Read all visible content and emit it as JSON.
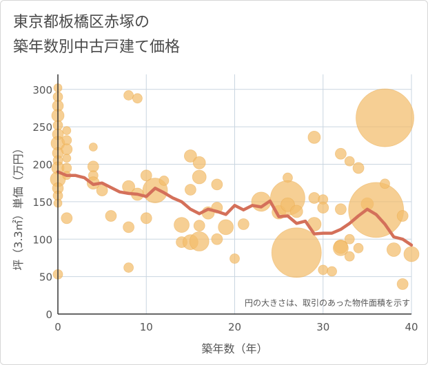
{
  "title_lines": [
    "東京都板橋区赤塚の",
    "築年数別中古戸建て価格"
  ],
  "chart_data": {
    "type": "scatter",
    "title": "東京都板橋区赤塚の築年数別中古戸建て価格",
    "xlabel": "築年数（年）",
    "ylabel": "坪（3.3㎡）単価（万円）",
    "xlim": [
      0,
      40
    ],
    "ylim": [
      0,
      320
    ],
    "xticks": [
      0,
      10,
      20,
      30,
      40
    ],
    "yticks": [
      0,
      50,
      100,
      150,
      200,
      250,
      300
    ],
    "grid": true,
    "annotation": "円の大きさは、取引のあった物件面積を示す",
    "colors": {
      "bubble": "#f2bd6b",
      "line": "#d4705a",
      "grid": "#c9d5e0",
      "axis": "#333333"
    },
    "series": [
      {
        "type": "bubble",
        "points": [
          {
            "x": 0,
            "y": 302,
            "s": 6
          },
          {
            "x": 0,
            "y": 290,
            "s": 7
          },
          {
            "x": 0,
            "y": 278,
            "s": 8
          },
          {
            "x": 0,
            "y": 265,
            "s": 9
          },
          {
            "x": 0,
            "y": 252,
            "s": 7
          },
          {
            "x": 0,
            "y": 240,
            "s": 8
          },
          {
            "x": 0,
            "y": 228,
            "s": 10
          },
          {
            "x": 0,
            "y": 215,
            "s": 8
          },
          {
            "x": 0,
            "y": 205,
            "s": 7
          },
          {
            "x": 0,
            "y": 195,
            "s": 9
          },
          {
            "x": 0,
            "y": 180,
            "s": 11
          },
          {
            "x": 0,
            "y": 168,
            "s": 8
          },
          {
            "x": 0,
            "y": 158,
            "s": 7
          },
          {
            "x": 0,
            "y": 148,
            "s": 6
          },
          {
            "x": 0,
            "y": 53,
            "s": 7
          },
          {
            "x": 1,
            "y": 245,
            "s": 6
          },
          {
            "x": 1,
            "y": 232,
            "s": 7
          },
          {
            "x": 1,
            "y": 220,
            "s": 8
          },
          {
            "x": 1,
            "y": 208,
            "s": 6
          },
          {
            "x": 1,
            "y": 195,
            "s": 7
          },
          {
            "x": 1,
            "y": 185,
            "s": 6
          },
          {
            "x": 1,
            "y": 128,
            "s": 8
          },
          {
            "x": 4,
            "y": 223,
            "s": 6
          },
          {
            "x": 4,
            "y": 197,
            "s": 8
          },
          {
            "x": 4,
            "y": 185,
            "s": 7
          },
          {
            "x": 4,
            "y": 175,
            "s": 9
          },
          {
            "x": 5,
            "y": 165,
            "s": 8
          },
          {
            "x": 6,
            "y": 131,
            "s": 8
          },
          {
            "x": 8,
            "y": 292,
            "s": 7
          },
          {
            "x": 9,
            "y": 288,
            "s": 7
          },
          {
            "x": 8,
            "y": 170,
            "s": 9
          },
          {
            "x": 8,
            "y": 116,
            "s": 8
          },
          {
            "x": 8,
            "y": 62,
            "s": 7
          },
          {
            "x": 9,
            "y": 160,
            "s": 9
          },
          {
            "x": 10,
            "y": 185,
            "s": 8
          },
          {
            "x": 10,
            "y": 128,
            "s": 8
          },
          {
            "x": 11,
            "y": 165,
            "s": 18
          },
          {
            "x": 12,
            "y": 178,
            "s": 7
          },
          {
            "x": 14,
            "y": 119,
            "s": 11
          },
          {
            "x": 14,
            "y": 96,
            "s": 8
          },
          {
            "x": 15,
            "y": 211,
            "s": 9
          },
          {
            "x": 15,
            "y": 166,
            "s": 8
          },
          {
            "x": 15,
            "y": 96,
            "s": 11
          },
          {
            "x": 16,
            "y": 202,
            "s": 9
          },
          {
            "x": 16,
            "y": 183,
            "s": 10
          },
          {
            "x": 16,
            "y": 118,
            "s": 8
          },
          {
            "x": 16,
            "y": 97,
            "s": 14
          },
          {
            "x": 17,
            "y": 135,
            "s": 9
          },
          {
            "x": 18,
            "y": 173,
            "s": 8
          },
          {
            "x": 18,
            "y": 142,
            "s": 8
          },
          {
            "x": 18,
            "y": 100,
            "s": 8
          },
          {
            "x": 19,
            "y": 116,
            "s": 11
          },
          {
            "x": 20,
            "y": 74,
            "s": 7
          },
          {
            "x": 21,
            "y": 120,
            "s": 8
          },
          {
            "x": 23,
            "y": 150,
            "s": 14
          },
          {
            "x": 25,
            "y": 136,
            "s": 10
          },
          {
            "x": 26,
            "y": 182,
            "s": 7
          },
          {
            "x": 26,
            "y": 155,
            "s": 25
          },
          {
            "x": 26,
            "y": 146,
            "s": 10
          },
          {
            "x": 27,
            "y": 137,
            "s": 9
          },
          {
            "x": 27,
            "y": 82,
            "s": 36
          },
          {
            "x": 29,
            "y": 236,
            "s": 9
          },
          {
            "x": 29,
            "y": 155,
            "s": 8
          },
          {
            "x": 29,
            "y": 120,
            "s": 10
          },
          {
            "x": 30,
            "y": 153,
            "s": 7
          },
          {
            "x": 30,
            "y": 142,
            "s": 8
          },
          {
            "x": 30,
            "y": 59,
            "s": 7
          },
          {
            "x": 31,
            "y": 57,
            "s": 7
          },
          {
            "x": 32,
            "y": 214,
            "s": 8
          },
          {
            "x": 32,
            "y": 140,
            "s": 8
          },
          {
            "x": 32,
            "y": 90,
            "s": 10
          },
          {
            "x": 32,
            "y": 88,
            "s": 11
          },
          {
            "x": 33,
            "y": 204,
            "s": 7
          },
          {
            "x": 33,
            "y": 100,
            "s": 7
          },
          {
            "x": 33,
            "y": 77,
            "s": 7
          },
          {
            "x": 34,
            "y": 195,
            "s": 8
          },
          {
            "x": 34,
            "y": 88,
            "s": 7
          },
          {
            "x": 35,
            "y": 147,
            "s": 9
          },
          {
            "x": 36,
            "y": 139,
            "s": 40
          },
          {
            "x": 37,
            "y": 262,
            "s": 42
          },
          {
            "x": 37,
            "y": 174,
            "s": 7
          },
          {
            "x": 38,
            "y": 86,
            "s": 10
          },
          {
            "x": 39,
            "y": 40,
            "s": 8
          },
          {
            "x": 39,
            "y": 131,
            "s": 8
          },
          {
            "x": 40,
            "y": 80,
            "s": 11
          }
        ]
      },
      {
        "type": "line",
        "points": [
          {
            "x": 0,
            "y": 190
          },
          {
            "x": 1,
            "y": 185
          },
          {
            "x": 2,
            "y": 185
          },
          {
            "x": 3,
            "y": 182
          },
          {
            "x": 4,
            "y": 173
          },
          {
            "x": 5,
            "y": 175
          },
          {
            "x": 6,
            "y": 169
          },
          {
            "x": 7,
            "y": 163
          },
          {
            "x": 8,
            "y": 161
          },
          {
            "x": 9,
            "y": 160
          },
          {
            "x": 10,
            "y": 157
          },
          {
            "x": 11,
            "y": 168
          },
          {
            "x": 12,
            "y": 162
          },
          {
            "x": 13,
            "y": 155
          },
          {
            "x": 14,
            "y": 150
          },
          {
            "x": 15,
            "y": 140
          },
          {
            "x": 16,
            "y": 134
          },
          {
            "x": 17,
            "y": 140
          },
          {
            "x": 18,
            "y": 137
          },
          {
            "x": 19,
            "y": 133
          },
          {
            "x": 20,
            "y": 145
          },
          {
            "x": 21,
            "y": 139
          },
          {
            "x": 22,
            "y": 145
          },
          {
            "x": 23,
            "y": 143
          },
          {
            "x": 24,
            "y": 151
          },
          {
            "x": 25,
            "y": 130
          },
          {
            "x": 26,
            "y": 131
          },
          {
            "x": 27,
            "y": 121
          },
          {
            "x": 28,
            "y": 124
          },
          {
            "x": 29,
            "y": 107
          },
          {
            "x": 30,
            "y": 108
          },
          {
            "x": 31,
            "y": 108
          },
          {
            "x": 32,
            "y": 113
          },
          {
            "x": 33,
            "y": 121
          },
          {
            "x": 34,
            "y": 131
          },
          {
            "x": 35,
            "y": 140
          },
          {
            "x": 36,
            "y": 133
          },
          {
            "x": 37,
            "y": 120
          },
          {
            "x": 38,
            "y": 103
          },
          {
            "x": 39,
            "y": 100
          },
          {
            "x": 40,
            "y": 92
          }
        ]
      }
    ]
  }
}
